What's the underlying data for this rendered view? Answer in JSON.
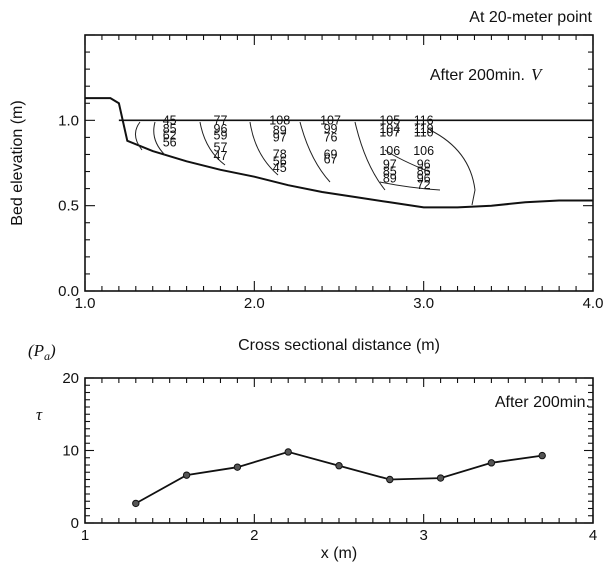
{
  "chart_data": [
    {
      "type": "contour",
      "corner_label": "At 20-meter point",
      "annotation_prefix": "After 200min.",
      "annotation_var": "V",
      "xlabel": "Cross sectional distance (m)",
      "ylabel": "Bed elevation (m)",
      "xlim": [
        1.0,
        4.0
      ],
      "ylim": [
        0.0,
        1.5
      ],
      "xticks": [
        1.0,
        2.0,
        3.0,
        4.0
      ],
      "xtick_labels": [
        "1.0",
        "2.0",
        "3.0",
        "4.0"
      ],
      "yticks": [
        0.0,
        0.5,
        1.0
      ],
      "ytick_labels": [
        "0.0",
        "0.5",
        "1.0"
      ],
      "water_surface": 1.0,
      "bed_profile": {
        "x": [
          1.0,
          1.15,
          1.2,
          1.25,
          1.4,
          1.6,
          1.8,
          2.0,
          2.2,
          2.4,
          2.6,
          2.8,
          3.0,
          3.2,
          3.4,
          3.6,
          3.8,
          4.0
        ],
        "y": [
          1.13,
          1.13,
          1.1,
          0.88,
          0.82,
          0.76,
          0.71,
          0.67,
          0.62,
          0.58,
          0.55,
          0.52,
          0.49,
          0.49,
          0.5,
          0.52,
          0.53,
          0.53
        ]
      },
      "contour_labels": [
        {
          "x": 1.5,
          "y": 1.0,
          "text": "45"
        },
        {
          "x": 1.8,
          "y": 1.0,
          "text": "77"
        },
        {
          "x": 2.15,
          "y": 1.0,
          "text": "108"
        },
        {
          "x": 2.45,
          "y": 1.0,
          "text": "107"
        },
        {
          "x": 2.8,
          "y": 1.0,
          "text": "105"
        },
        {
          "x": 3.0,
          "y": 1.0,
          "text": "116"
        },
        {
          "x": 1.5,
          "y": 0.95,
          "text": "85"
        },
        {
          "x": 1.8,
          "y": 0.95,
          "text": "96"
        },
        {
          "x": 2.15,
          "y": 0.94,
          "text": "89"
        },
        {
          "x": 2.45,
          "y": 0.95,
          "text": "99"
        },
        {
          "x": 2.8,
          "y": 0.95,
          "text": "104"
        },
        {
          "x": 3.0,
          "y": 0.95,
          "text": "119"
        },
        {
          "x": 1.5,
          "y": 0.91,
          "text": "62"
        },
        {
          "x": 1.8,
          "y": 0.91,
          "text": "59"
        },
        {
          "x": 2.15,
          "y": 0.9,
          "text": "97"
        },
        {
          "x": 2.45,
          "y": 0.9,
          "text": "76"
        },
        {
          "x": 2.8,
          "y": 0.93,
          "text": "107"
        },
        {
          "x": 3.0,
          "y": 0.93,
          "text": "110"
        },
        {
          "x": 1.5,
          "y": 0.87,
          "text": "56"
        },
        {
          "x": 1.8,
          "y": 0.84,
          "text": "57"
        },
        {
          "x": 2.15,
          "y": 0.8,
          "text": "78"
        },
        {
          "x": 2.45,
          "y": 0.8,
          "text": "69"
        },
        {
          "x": 2.8,
          "y": 0.82,
          "text": "106"
        },
        {
          "x": 3.0,
          "y": 0.82,
          "text": "106"
        },
        {
          "x": 1.8,
          "y": 0.79,
          "text": "47"
        },
        {
          "x": 2.15,
          "y": 0.76,
          "text": "56"
        },
        {
          "x": 2.45,
          "y": 0.77,
          "text": "67"
        },
        {
          "x": 2.8,
          "y": 0.74,
          "text": "97"
        },
        {
          "x": 3.0,
          "y": 0.74,
          "text": "96"
        },
        {
          "x": 2.15,
          "y": 0.72,
          "text": "45"
        },
        {
          "x": 2.8,
          "y": 0.7,
          "text": "85"
        },
        {
          "x": 3.0,
          "y": 0.7,
          "text": "86"
        },
        {
          "x": 2.8,
          "y": 0.66,
          "text": "89"
        },
        {
          "x": 3.0,
          "y": 0.66,
          "text": "96"
        },
        {
          "x": 3.0,
          "y": 0.62,
          "text": "72"
        }
      ]
    },
    {
      "type": "line",
      "unit_label": "(P",
      "unit_sub": "a",
      "unit_close": ")",
      "annotation": "After 200min.",
      "xlabel": "x (m)",
      "ylabel": "τ",
      "xlim": [
        1,
        4
      ],
      "ylim": [
        0,
        20
      ],
      "xticks": [
        1,
        2,
        3,
        4
      ],
      "xtick_labels": [
        "1",
        "2",
        "3",
        "4"
      ],
      "yticks": [
        0,
        10,
        20
      ],
      "ytick_labels": [
        "0",
        "10",
        "20"
      ],
      "x": [
        1.3,
        1.6,
        1.9,
        2.2,
        2.5,
        2.8,
        3.1,
        3.4,
        3.7
      ],
      "y": [
        2.7,
        6.6,
        7.7,
        9.8,
        7.9,
        6.0,
        6.2,
        8.3,
        9.3
      ]
    }
  ]
}
